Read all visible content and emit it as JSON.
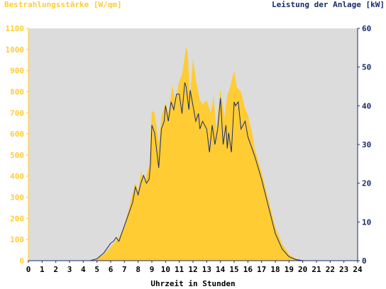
{
  "chart_data": {
    "type": "area",
    "left_axis_label": "Bestrahlungsstärke [W/qm]",
    "right_axis_label": "Leistung der Anlage [kW]",
    "xlabel": "Uhrzeit in Stunden",
    "xlim": [
      0,
      24
    ],
    "ylim_left": [
      0,
      1100
    ],
    "ylim_right": [
      0,
      60
    ],
    "x_ticks": [
      "0",
      "1",
      "2",
      "3",
      "4",
      "5",
      "6",
      "7",
      "8",
      "9",
      "10",
      "11",
      "12",
      "13",
      "14",
      "15",
      "16",
      "17",
      "18",
      "19",
      "20",
      "21",
      "22",
      "23",
      "24"
    ],
    "y_ticks_left": [
      "0",
      "100",
      "200",
      "300",
      "400",
      "500",
      "600",
      "700",
      "800",
      "900",
      "1000",
      "1100"
    ],
    "y_ticks_right": [
      "0",
      "10",
      "20",
      "30",
      "40",
      "50",
      "60"
    ],
    "colors": {
      "irradiance": "#ffcc33",
      "power": "#1a2a6e",
      "plot_background": "#dcdcdc",
      "left_axis_text": "#ffcc33",
      "right_axis_text": "#1a2a6e"
    },
    "series": [
      {
        "name": "Bestrahlungsstärke",
        "axis": "left",
        "style": "area",
        "x": [
          0,
          4.5,
          5,
          5.5,
          6,
          6.3,
          6.6,
          7,
          7.3,
          7.6,
          7.8,
          8,
          8.2,
          8.5,
          8.8,
          9,
          9.2,
          9.5,
          9.7,
          10,
          10.2,
          10.5,
          10.7,
          11,
          11.2,
          11.5,
          11.6,
          11.8,
          12,
          12.2,
          12.5,
          12.7,
          13,
          13.3,
          13.5,
          13.7,
          14,
          14.3,
          14.5,
          14.7,
          15,
          15.2,
          15.5,
          15.8,
          16,
          16.3,
          16.5,
          17,
          17.5,
          18,
          18.5,
          19,
          19.5,
          20,
          20.5,
          21,
          24
        ],
        "y": [
          0,
          0,
          10,
          30,
          65,
          90,
          110,
          165,
          240,
          320,
          370,
          330,
          420,
          380,
          450,
          710,
          700,
          560,
          680,
          750,
          700,
          830,
          760,
          850,
          880,
          1010,
          990,
          780,
          960,
          860,
          760,
          740,
          760,
          700,
          780,
          620,
          810,
          680,
          780,
          820,
          900,
          820,
          800,
          720,
          690,
          610,
          530,
          420,
          290,
          160,
          80,
          30,
          10,
          3,
          0,
          0,
          0
        ]
      },
      {
        "name": "Leistung der Anlage",
        "axis": "right",
        "style": "line",
        "x": [
          0,
          4.5,
          5,
          5.5,
          6,
          6.2,
          6.4,
          6.6,
          7,
          7.3,
          7.6,
          7.8,
          8,
          8.2,
          8.4,
          8.6,
          8.8,
          8.9,
          9,
          9.2,
          9.5,
          9.7,
          9.9,
          10,
          10.2,
          10.4,
          10.6,
          10.8,
          11,
          11.2,
          11.4,
          11.5,
          11.7,
          11.8,
          12,
          12.2,
          12.4,
          12.5,
          12.7,
          13,
          13.2,
          13.4,
          13.6,
          13.8,
          14,
          14.2,
          14.4,
          14.5,
          14.6,
          14.8,
          15,
          15.1,
          15.3,
          15.5,
          15.8,
          16,
          16.5,
          17,
          17.5,
          18,
          18.5,
          19,
          19.5,
          20,
          20.5,
          21,
          24
        ],
        "y": [
          0,
          0,
          0.5,
          2,
          4.5,
          5,
          6,
          5,
          9,
          12,
          15,
          19,
          17,
          20,
          22,
          20,
          21,
          25,
          35,
          33,
          24,
          34,
          36,
          40,
          36,
          41,
          39,
          43,
          43,
          38,
          46,
          45,
          39,
          44,
          40,
          36,
          38,
          34,
          36,
          34,
          28,
          35,
          30,
          34,
          42,
          30,
          35,
          29,
          33,
          28,
          41,
          40,
          41,
          34,
          36,
          32,
          27,
          21,
          14,
          7,
          3,
          1,
          0.3,
          0,
          0,
          0,
          0
        ]
      }
    ]
  }
}
